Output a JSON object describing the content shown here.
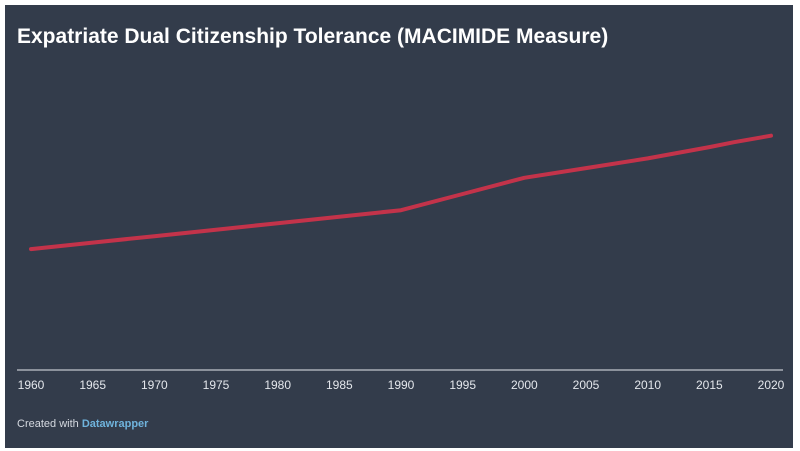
{
  "chart_data": {
    "type": "line",
    "title": "Expatriate Dual Citizenship Tolerance (MACIMIDE Measure)",
    "xlabel": "",
    "ylabel": "",
    "x": [
      1960,
      1965,
      1970,
      1975,
      1980,
      1985,
      1990,
      1995,
      2000,
      2005,
      2010,
      2015,
      2017,
      2020
    ],
    "series": [
      {
        "name": "Expatriate Dual Citizenship Tolerance",
        "values": [
          0.37,
          0.39,
          0.41,
          0.43,
          0.45,
          0.47,
          0.49,
          0.54,
          0.59,
          0.62,
          0.65,
          0.685,
          0.7,
          0.72
        ],
        "color": "#c3334a"
      }
    ],
    "xticks": [
      "1960",
      "1965",
      "1970",
      "1975",
      "1980",
      "1985",
      "1990",
      "1995",
      "2000",
      "2005",
      "2010",
      "2015",
      "2020"
    ],
    "xlim": [
      1960,
      2020
    ],
    "ylim": [
      0,
      1
    ],
    "grid": false,
    "legend": "none"
  },
  "footer": {
    "prefix": "Created with ",
    "link": "Datawrapper"
  },
  "colors": {
    "background": "#333c4b",
    "line": "#c3334a",
    "axis": "#e4e7ec"
  }
}
